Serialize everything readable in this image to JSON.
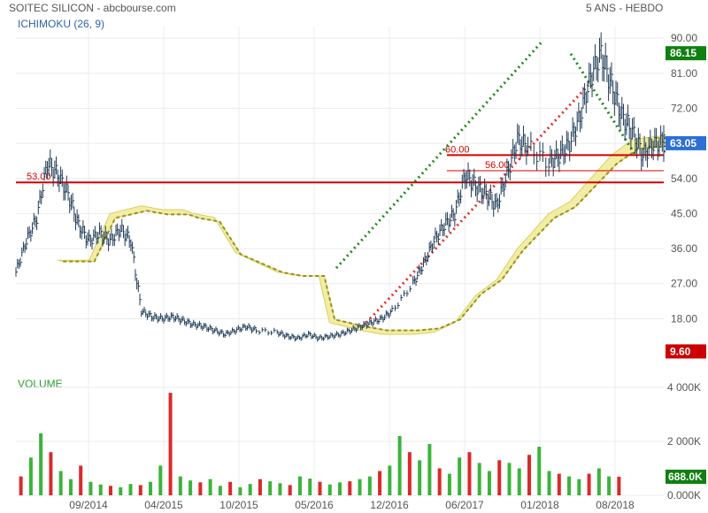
{
  "header": {
    "title": "SOITEC SILICON - abcbourse.com",
    "period": "5 ANS - HEBDO",
    "indicator": "ICHIMOKU (26, 9)",
    "volume_label": "VOLUME"
  },
  "colors": {
    "price": "#1f3b57",
    "cloud": "#f1ec9c",
    "cloud_edge": "#d4cc55",
    "kijun": "#9a8f1e",
    "support": "#d40000",
    "trend_green": "#1c8a1c",
    "trend_red": "#e03030",
    "vol_up": "#3cb33c",
    "vol_down": "#d92a2a",
    "tag_green": "#108010",
    "tag_blue": "#2d6fd6",
    "tag_red": "#cc0000"
  },
  "chart_data": [
    {
      "type": "line",
      "title": "SOITEC SILICON - abcbourse.com",
      "x_ticks": [
        "09/2014",
        "04/2015",
        "10/2015",
        "05/2016",
        "12/2016",
        "06/2017",
        "01/2018",
        "08/2018"
      ],
      "y_ticks": [
        "90.00",
        "81.00",
        "72.00",
        "63.00",
        "54.00",
        "45.00",
        "36.00",
        "27.00",
        "18.00"
      ],
      "ylim": [
        9,
        93
      ],
      "x_range": [
        "2014-02",
        "2018-12"
      ],
      "grid": true,
      "price_tags": [
        {
          "label": "86.15",
          "value": 86.15,
          "color": "green"
        },
        {
          "label": "63.05",
          "value": 63.05,
          "color": "blue"
        },
        {
          "label": "9.60",
          "value": 9.6,
          "color": "red"
        }
      ],
      "horizontal_levels": [
        {
          "label": "53.00",
          "value": 53.0
        },
        {
          "label": "60.00",
          "value": 60.0
        },
        {
          "label": "56.00",
          "value": 56.0
        }
      ],
      "series": [
        {
          "name": "",
          "points": [
            [
              "2014-02",
              30
            ],
            [
              "2014-03",
              38
            ],
            [
              "2014-04",
              44
            ],
            [
              "2014-05",
              58
            ],
            [
              "2014-06",
              55
            ],
            [
              "2014-07",
              50
            ],
            [
              "2014-08",
              42
            ],
            [
              "2014-09",
              38
            ],
            [
              "2014-10",
              40
            ],
            [
              "2014-11",
              38
            ],
            [
              "2014-12",
              41
            ],
            [
              "2014-13",
              38
            ],
            [
              "2015-01",
              20
            ],
            [
              "2015-02",
              18.5
            ],
            [
              "2015-03",
              18
            ],
            [
              "2015-04",
              18.5
            ],
            [
              "2015-05",
              17.5
            ],
            [
              "2015-06",
              16.5
            ],
            [
              "2015-07",
              16
            ],
            [
              "2015-08",
              15
            ],
            [
              "2015-09",
              14
            ],
            [
              "2015-10",
              15
            ],
            [
              "2015-11",
              16
            ],
            [
              "2015-12",
              15
            ],
            [
              "2016-01",
              14.5
            ],
            [
              "2016-02",
              13.5
            ],
            [
              "2016-03",
              13
            ],
            [
              "2016-04",
              14
            ],
            [
              "2016-05",
              13
            ],
            [
              "2016-06",
              13.5
            ],
            [
              "2016-07",
              14
            ],
            [
              "2016-08",
              15
            ],
            [
              "2016-09",
              16
            ],
            [
              "2016-10",
              17
            ],
            [
              "2016-11",
              18
            ],
            [
              "2016-12",
              20
            ],
            [
              "2017-01",
              27
            ],
            [
              "2017-02",
              32
            ],
            [
              "2017-03",
              38
            ],
            [
              "2017-04",
              42
            ],
            [
              "2017-05",
              45
            ],
            [
              "2017-06",
              55
            ],
            [
              "2017-07",
              52
            ],
            [
              "2017-08",
              50
            ],
            [
              "2017-09",
              47
            ],
            [
              "2017-10",
              55
            ],
            [
              "2017-11",
              64
            ],
            [
              "2017-12",
              62
            ],
            [
              "2018-01",
              58
            ],
            [
              "2018-02",
              60
            ],
            [
              "2018-03",
              63
            ],
            [
              "2018-04",
              70
            ],
            [
              "2018-05",
              80
            ],
            [
              "2018-06",
              86
            ],
            [
              "2018-07",
              78
            ],
            [
              "2018-08",
              70
            ],
            [
              "2018-09",
              66
            ],
            [
              "2018-10",
              60
            ],
            [
              "2018-11",
              63
            ],
            [
              "2018-12",
              63
            ]
          ]
        },
        {
          "name": "",
          "points": [
            [
              "2014-06",
              33
            ],
            [
              "2014-09",
              33
            ],
            [
              "2014-11",
              45
            ],
            [
              "2015-01",
              47
            ],
            [
              "2015-03",
              46
            ],
            [
              "2015-05",
              46
            ],
            [
              "2015-06",
              45
            ],
            [
              "2015-08",
              44
            ],
            [
              "2015-10",
              35
            ],
            [
              "2016-01",
              30
            ],
            [
              "2016-03",
              29
            ],
            [
              "2016-05",
              29
            ],
            [
              "2016-06",
              17
            ],
            [
              "2016-09",
              15
            ],
            [
              "2016-11",
              14
            ],
            [
              "2017-01",
              14
            ],
            [
              "2017-03",
              14.5
            ],
            [
              "2017-05",
              17
            ],
            [
              "2017-07",
              24
            ],
            [
              "2017-09",
              28
            ],
            [
              "2017-11",
              36
            ],
            [
              "2018-01",
              45
            ],
            [
              "2018-03",
              48
            ],
            [
              "2018-05",
              54
            ],
            [
              "2018-07",
              60
            ],
            [
              "2018-09",
              64
            ],
            [
              "2018-12",
              65
            ]
          ]
        }
      ]
    },
    {
      "type": "bar",
      "title": "VOLUME",
      "y_ticks": [
        "4 000K",
        "2 000K",
        "0.000K"
      ],
      "ylim": [
        0,
        4000
      ],
      "price_tags": [
        {
          "label": "688.0K",
          "value": 688,
          "color": "green"
        }
      ],
      "values": [
        700,
        1400,
        2300,
        1600,
        900,
        600,
        1100,
        500,
        400,
        350,
        300,
        420,
        380,
        500,
        1100,
        3800,
        700,
        550,
        480,
        600,
        350,
        500,
        300,
        420,
        600,
        520,
        450,
        380,
        700,
        620,
        500,
        400,
        480,
        520,
        600,
        700,
        900,
        1100,
        2200,
        1600,
        1300,
        1900,
        1000,
        800,
        1400,
        1600,
        1200,
        900,
        1300,
        1200,
        1000,
        1500,
        1800,
        900,
        800,
        700,
        600,
        800,
        1000,
        700,
        688
      ]
    }
  ]
}
